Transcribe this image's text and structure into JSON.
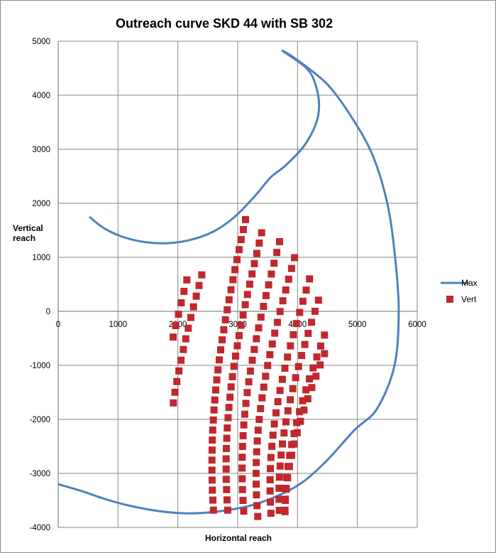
{
  "chart_data": {
    "type": "scatter",
    "title": "Outreach curve SKD 44 with SB 302",
    "xlabel": "Horizontal reach",
    "ylabel": "Vertical reach",
    "xlim": [
      0,
      6000
    ],
    "ylim": [
      -4000,
      5000
    ],
    "x_ticks": [
      0,
      1000,
      2000,
      3000,
      4000,
      5000,
      6000
    ],
    "y_ticks": [
      5000,
      4000,
      3000,
      2000,
      1000,
      0,
      -1000,
      -2000,
      -3000,
      -4000
    ],
    "grid": true,
    "legend_position": "right",
    "series": [
      {
        "name": "Max",
        "kind": "line",
        "color": "#4f81bd",
        "points": [
          [
            520,
            1750
          ],
          [
            750,
            1550
          ],
          [
            1050,
            1390
          ],
          [
            1400,
            1290
          ],
          [
            1800,
            1260
          ],
          [
            2200,
            1320
          ],
          [
            2600,
            1480
          ],
          [
            2950,
            1750
          ],
          [
            3300,
            2150
          ],
          [
            3550,
            2480
          ],
          [
            3800,
            2700
          ],
          [
            4100,
            3050
          ],
          [
            4300,
            3450
          ],
          [
            4360,
            3800
          ],
          [
            4300,
            4200
          ],
          [
            4150,
            4500
          ],
          [
            3750,
            4820
          ],
          [
            4000,
            4650
          ],
          [
            4500,
            4200
          ],
          [
            4900,
            3600
          ],
          [
            5250,
            2900
          ],
          [
            5500,
            2000
          ],
          [
            5630,
            1000
          ],
          [
            5690,
            0
          ],
          [
            5620,
            -1000
          ],
          [
            5330,
            -1800
          ],
          [
            4950,
            -2200
          ],
          [
            4500,
            -2750
          ],
          [
            4100,
            -3150
          ],
          [
            3700,
            -3400
          ],
          [
            3200,
            -3600
          ],
          [
            2700,
            -3700
          ],
          [
            2200,
            -3740
          ],
          [
            1700,
            -3700
          ],
          [
            1200,
            -3600
          ],
          [
            800,
            -3480
          ],
          [
            400,
            -3330
          ],
          [
            0,
            -3200
          ]
        ]
      },
      {
        "name": "Vert",
        "kind": "scatter",
        "color": "#c0282e",
        "arcs": [
          {
            "center": [
              3130,
              1720
            ],
            "rx": 680,
            "ry": 5350,
            "dt_deg": [
              -10,
              -25
            ],
            "n": 30
          },
          {
            "center": [
              3400,
              1470
            ],
            "rx": 720,
            "ry": 5100,
            "dt_deg": [
              -8,
              -25
            ],
            "n": 28
          },
          {
            "center": [
              3700,
              1300
            ],
            "rx": 760,
            "ry": 4950,
            "dt_deg": [
              -5,
              -24
            ],
            "n": 26
          },
          {
            "center": [
              3950,
              1000
            ],
            "rx": 780,
            "ry": 4750,
            "dt_deg": [
              -3,
              -23
            ],
            "n": 25
          },
          {
            "center": [
              4200,
              600
            ],
            "rx": 800,
            "ry": 4500,
            "dt_deg": [
              0,
              -22
            ],
            "n": 23
          },
          {
            "center": [
              4350,
              200
            ],
            "rx": 800,
            "ry": 4250,
            "dt_deg": [
              3,
              -21
            ],
            "n": 22
          },
          {
            "center": [
              4450,
              -450
            ],
            "rx": 800,
            "ry": 3800,
            "dt_deg": [
              5,
              -19
            ],
            "n": 20
          },
          {
            "center": [
              4450,
              -800
            ],
            "rx": 800,
            "ry": 3500,
            "dt_deg": [
              8,
              -17
            ],
            "n": 18
          },
          {
            "center": [
              2150,
              550
            ],
            "rx": 650,
            "ry": 4400,
            "dt_deg": [
              15,
              -5
            ],
            "n": 22
          },
          {
            "center": [
              2400,
              650
            ],
            "rx": 700,
            "ry": 4500,
            "dt_deg": [
              12,
              -8
            ],
            "n": 24
          }
        ]
      }
    ]
  }
}
